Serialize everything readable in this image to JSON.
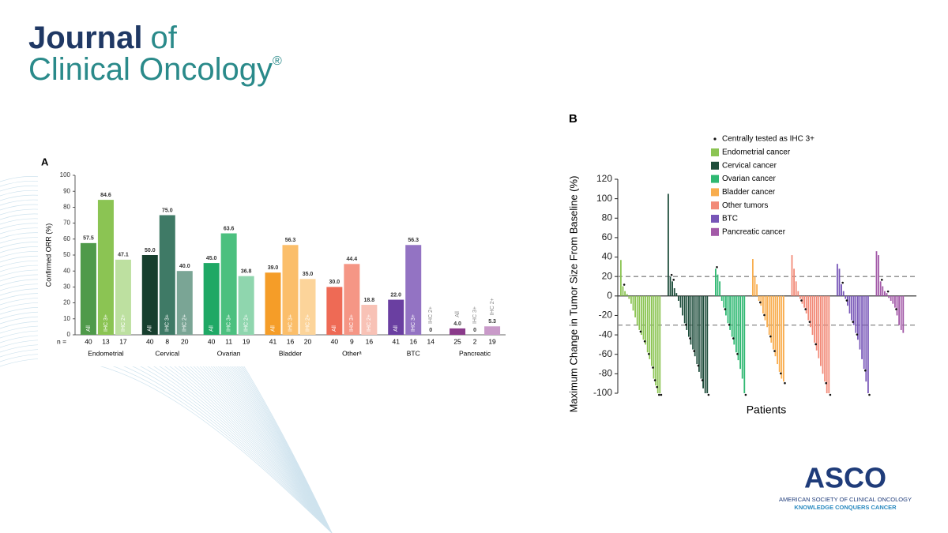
{
  "header": {
    "journal_word": "Journal",
    "journal_of": "of",
    "journal_line2": "Clinical Oncology",
    "registered": "®"
  },
  "footer": {
    "logo": "ASCO",
    "society": "AMERICAN SOCIETY OF CLINICAL ONCOLOGY",
    "tagline": "KNOWLEDGE CONQUERS CANCER"
  },
  "chart_data": [
    {
      "type": "bar",
      "panel": "A",
      "ylabel": "Confirmed ORR (%)",
      "n_label": "n =",
      "categories": [
        "Endometrial",
        "Cervical",
        "Ovarian",
        "Bladder",
        "Otherᵃ",
        "BTC",
        "Pancreatic"
      ],
      "ylim": [
        0,
        100
      ],
      "yticks": [
        0,
        10,
        20,
        30,
        40,
        50,
        60,
        70,
        80,
        90,
        100
      ],
      "series": [
        {
          "name": "All",
          "values": [
            57.5,
            50.0,
            45.0,
            39.0,
            30.0,
            22.0,
            4.0
          ],
          "value_labels": [
            "57.5",
            "50.0",
            "45.0",
            "39.0",
            "30.0",
            "22.0",
            "4.0"
          ],
          "n": [
            40,
            40,
            40,
            41,
            40,
            41,
            25
          ],
          "colors": [
            "#4f9a4a",
            "#173f2e",
            "#1fa865",
            "#f59d28",
            "#ee6a55",
            "#6a3fa1",
            "#8a3a8a"
          ]
        },
        {
          "name": "IHC 3+",
          "values": [
            84.6,
            75.0,
            63.6,
            56.3,
            44.4,
            56.3,
            0
          ],
          "value_labels": [
            "84.6",
            "75.0",
            "63.6",
            "56.3",
            "44.4",
            "56.3",
            "0"
          ],
          "n": [
            13,
            8,
            11,
            16,
            9,
            16,
            2
          ],
          "colors": [
            "#8bc453",
            "#3f7a66",
            "#4cc07f",
            "#fbbe6a",
            "#f59685",
            "#9373c3",
            "#a85ea8"
          ]
        },
        {
          "name": "IHC 2+",
          "values": [
            47.1,
            40.0,
            36.8,
            35.0,
            18.8,
            0,
            5.3
          ],
          "value_labels": [
            "47.1",
            "40.0",
            "36.8",
            "35.0",
            "18.8",
            "0",
            "5.3"
          ],
          "n": [
            17,
            20,
            19,
            20,
            16,
            14,
            19
          ],
          "colors": [
            "#bde0a0",
            "#7aa595",
            "#8fd6ae",
            "#fcd49a",
            "#f8c2b6",
            "#c3b0dc",
            "#c99ac9"
          ]
        }
      ]
    },
    {
      "type": "waterfall",
      "panel": "B",
      "ylabel": "Maximum Change in Tumor Size From Baseline (%)",
      "xlabel": "Patients",
      "marker_label": "Centrally tested as IHC 3+",
      "ylim": [
        -100,
        120
      ],
      "yticks": [
        -100,
        -80,
        -60,
        -40,
        -20,
        0,
        20,
        40,
        60,
        80,
        100,
        120
      ],
      "reference_lines": [
        20,
        -30
      ],
      "series": [
        {
          "name": "Endometrial cancer",
          "color": "#8bc453",
          "values": [
            37,
            10,
            5,
            2,
            -3,
            -8,
            -15,
            -22,
            -30,
            -35,
            -40,
            -45,
            -50,
            -58,
            -65,
            -72,
            -85,
            -92,
            -100,
            -100
          ],
          "ihc3": [
            1,
            9,
            11,
            13,
            15,
            16,
            17,
            18,
            19
          ]
        },
        {
          "name": "Cervical cancer",
          "color": "#1e4d3b",
          "values": [
            105,
            20,
            15,
            8,
            3,
            -5,
            -12,
            -20,
            -28,
            -35,
            -42,
            -50,
            -55,
            -62,
            -70,
            -78,
            -85,
            -95,
            -100,
            -100
          ],
          "ihc3": [
            1,
            2,
            8,
            10,
            12,
            14,
            16,
            19
          ]
        },
        {
          "name": "Ovarian cancer",
          "color": "#2fb872",
          "values": [
            28,
            22,
            15,
            -5,
            -12,
            -20,
            -28,
            -35,
            -42,
            -50,
            -58,
            -66,
            -75,
            -85,
            -100
          ],
          "ihc3": [
            0,
            4,
            6,
            8,
            10,
            14
          ]
        },
        {
          "name": "Bladder cancer",
          "color": "#f8ad4e",
          "values": [
            38,
            20,
            12,
            -5,
            -10,
            -18,
            -25,
            -32,
            -40,
            -48,
            -55,
            -62,
            -70,
            -78,
            -85,
            -88
          ],
          "ihc3": [
            3,
            5,
            8,
            10,
            13,
            15
          ]
        },
        {
          "name": "Other tumors",
          "color": "#f28a78",
          "values": [
            42,
            28,
            15,
            5,
            -3,
            -8,
            -12,
            -18,
            -25,
            -32,
            -40,
            -48,
            -56,
            -64,
            -72,
            -80,
            -88,
            -100,
            -100
          ],
          "ihc3": [
            4,
            6,
            8,
            11,
            16,
            18
          ]
        },
        {
          "name": "BTC",
          "color": "#7856b8",
          "values": [
            33,
            28,
            12,
            5,
            -3,
            -10,
            -18,
            -25,
            -30,
            -38,
            -45,
            -55,
            -65,
            -75,
            -88,
            -100
          ],
          "ihc3": [
            2,
            4,
            7,
            9,
            13,
            15
          ]
        },
        {
          "name": "Pancreatic cancer",
          "color": "#a35aa8",
          "values": [
            46,
            42,
            15,
            10,
            5,
            3,
            -2,
            -5,
            -8,
            -12,
            -20,
            -30,
            -35,
            -38
          ],
          "ihc3": [
            2,
            5,
            9
          ]
        }
      ]
    }
  ]
}
